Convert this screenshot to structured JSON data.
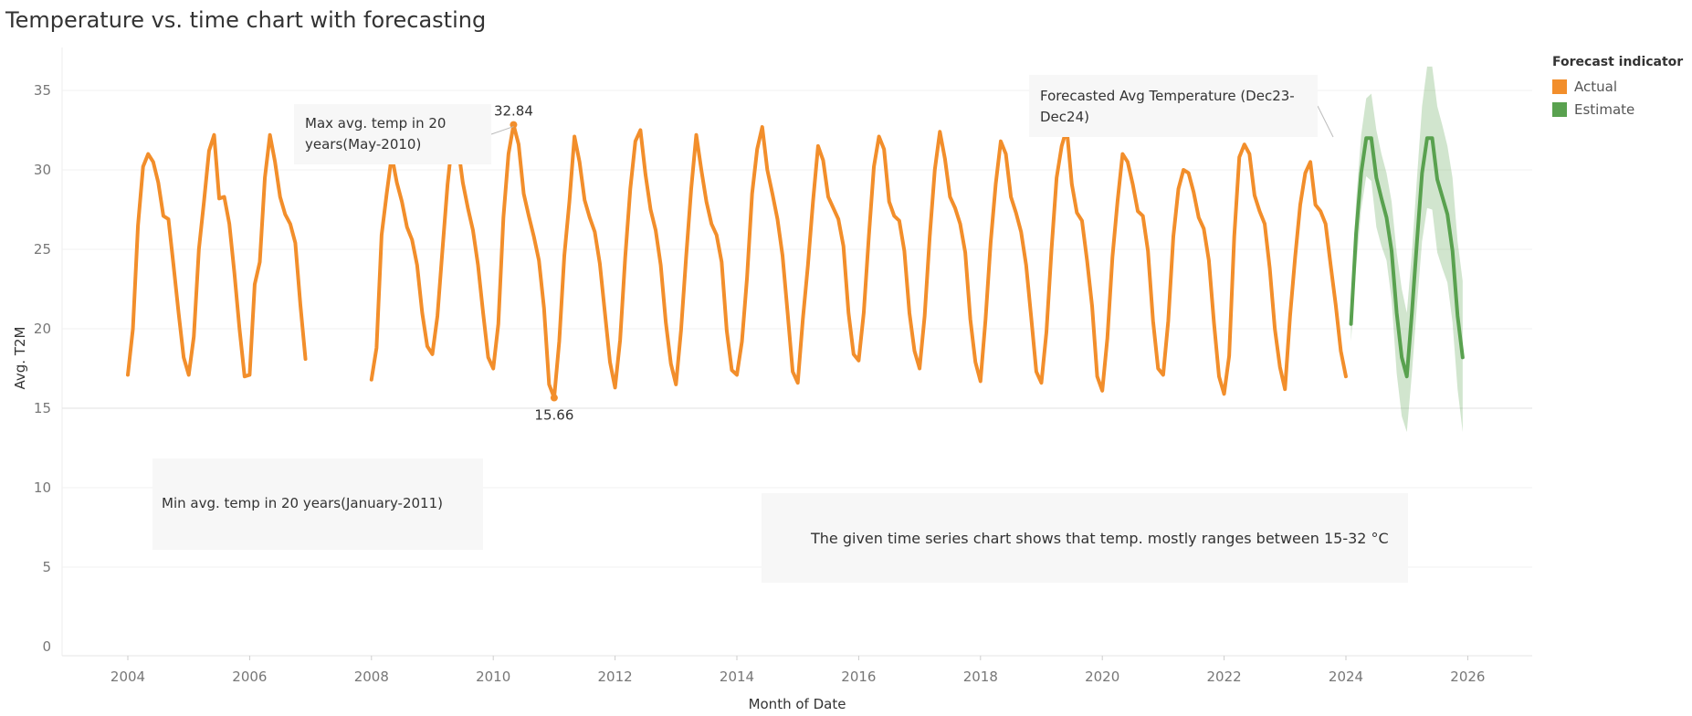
{
  "title": "Temperature vs. time chart with forecasting",
  "chart_data": {
    "type": "line",
    "title": "Temperature vs. time chart with forecasting",
    "xlabel": "Month of Date",
    "ylabel": "Avg. T2M",
    "xlim": [
      2003.0,
      2027.0
    ],
    "ylim": [
      0,
      37
    ],
    "x_ticks": [
      "2004",
      "2006",
      "2008",
      "2010",
      "2012",
      "2014",
      "2016",
      "2018",
      "2020",
      "2022",
      "2024",
      "2026"
    ],
    "y_ticks": [
      "0",
      "5",
      "10",
      "15",
      "20",
      "25",
      "30",
      "35"
    ],
    "grid": true,
    "legend": {
      "title": "Forecast indicator",
      "position": "top-right",
      "items": [
        {
          "label": "Actual",
          "color": "#f28e2b"
        },
        {
          "label": "Estimate",
          "color": "#59a14f"
        }
      ]
    },
    "series": [
      {
        "name": "Actual",
        "color": "#f28e2b",
        "segments": [
          {
            "start": 2004.0,
            "step": 0.08333,
            "values": [
              17.1,
              20.0,
              26.5,
              30.2,
              31.0,
              30.5,
              29.2,
              27.1,
              26.9,
              24.0,
              21.0,
              18.2,
              17.1,
              19.5,
              25.0,
              28.0,
              31.2,
              32.2,
              28.2,
              28.3,
              26.6,
              23.5,
              20.0,
              17.0,
              17.1,
              22.8,
              24.2,
              29.5,
              32.2,
              30.5,
              28.3,
              27.2,
              26.6,
              25.4,
              21.5,
              18.1
            ]
          },
          {
            "start": 2008.0,
            "step": 0.08333,
            "values": [
              16.8,
              18.8,
              25.9,
              28.5,
              30.9,
              29.2,
              28.0,
              26.4,
              25.6,
              24.0,
              21.0,
              18.9,
              18.4,
              20.8,
              25.0,
              29.1,
              32.1,
              31.6,
              29.2,
              27.6,
              26.2,
              24.0,
              21.0,
              18.2,
              17.5,
              20.3,
              27.0,
              31.0,
              32.84,
              31.6,
              28.5,
              27.1,
              25.8,
              24.3,
              21.3,
              16.5,
              15.66,
              19.2,
              24.6,
              28.0,
              32.1,
              30.5,
              28.1,
              27.0,
              26.1,
              24.1,
              21.0,
              17.9,
              16.3,
              19.3,
              24.5,
              28.8,
              31.8,
              32.5,
              29.7,
              27.5,
              26.2,
              24.0,
              20.4,
              17.8,
              16.5,
              19.9,
              24.5,
              28.8,
              32.2,
              30.0,
              28.0,
              26.6,
              25.9,
              24.2,
              19.9,
              17.4,
              17.1,
              19.2,
              23.2,
              28.5,
              31.3,
              32.7,
              30.0,
              28.5,
              26.9,
              24.6,
              21.0,
              17.3,
              16.6,
              20.6,
              24.0,
              28.0,
              31.5,
              30.6,
              28.3,
              27.6,
              26.9,
              25.2,
              21.0,
              18.4,
              18.0,
              21.0,
              25.8,
              30.2,
              32.1,
              31.3,
              28.0,
              27.1,
              26.8,
              24.9,
              21.0,
              18.6,
              17.5,
              20.8,
              25.8,
              30.0,
              32.4,
              30.7,
              28.3,
              27.6,
              26.6,
              24.8,
              20.6,
              17.9,
              16.7,
              20.6,
              25.4,
              29.1,
              31.8,
              31.0,
              28.3,
              27.3,
              26.1,
              24.0,
              20.7,
              17.3,
              16.6,
              19.8,
              25.0,
              29.5,
              31.5,
              32.6,
              29.1,
              27.3,
              26.8,
              24.3,
              21.4,
              17.0,
              16.1,
              19.4,
              24.5,
              28.0,
              31.0,
              30.5,
              29.1,
              27.4,
              27.1,
              24.9,
              20.5,
              17.5,
              17.1,
              20.5,
              25.8,
              28.8,
              30.0,
              29.8,
              28.6,
              27.0,
              26.3,
              24.3,
              20.4,
              17.0,
              15.9,
              18.3,
              25.8,
              30.8,
              31.6,
              31.0,
              28.4,
              27.4,
              26.6,
              23.8,
              20.0,
              17.6,
              16.2,
              20.8,
              24.5,
              27.8,
              29.8,
              30.5,
              27.8,
              27.4,
              26.6,
              24.0,
              21.5,
              18.6,
              17.0
            ]
          }
        ]
      },
      {
        "name": "Estimate",
        "color": "#59a14f",
        "segments": [
          {
            "start": 2024.08333,
            "step": 0.08333,
            "values": [
              20.3,
              26.0,
              29.8,
              32.0,
              32.0,
              29.5,
              28.2,
              27.0,
              24.9,
              21.0,
              18.2,
              17.0,
              21.0,
              25.5,
              29.8,
              32.0,
              32.0,
              29.4,
              28.3,
              27.2,
              24.9,
              20.8,
              18.2
            ],
            "upper": [
              21.5,
              28.0,
              32.2,
              34.5,
              34.8,
              32.5,
              31.0,
              29.8,
              28.0,
              24.8,
              22.5,
              21.0,
              24.8,
              29.5,
              34.0,
              36.5,
              36.5,
              34.0,
              32.8,
              31.5,
              29.5,
              25.5,
              23.0
            ],
            "lower": [
              19.2,
              23.8,
              27.5,
              29.6,
              29.3,
              26.4,
              25.2,
              24.3,
              21.8,
              17.2,
              14.5,
              13.5,
              17.2,
              21.5,
              25.5,
              27.6,
              27.5,
              24.8,
              23.8,
              22.9,
              20.4,
              16.2,
              13.5
            ]
          }
        ]
      }
    ],
    "point_labels": [
      {
        "text": "32.84",
        "x": 2010.3333,
        "y": 32.84
      },
      {
        "text": "15.66",
        "x": 2011.0,
        "y": 15.66
      }
    ]
  },
  "annotations": {
    "max_note": "Max avg. temp in 20 years(May-2010)",
    "min_note": "Min avg. temp in 20 years(January-2011)",
    "forecast_note": "Forecasted Avg Temperature (Dec23-Dec24)",
    "summary_note": "The given time series chart shows that temp. mostly ranges between 15-32 °C"
  }
}
